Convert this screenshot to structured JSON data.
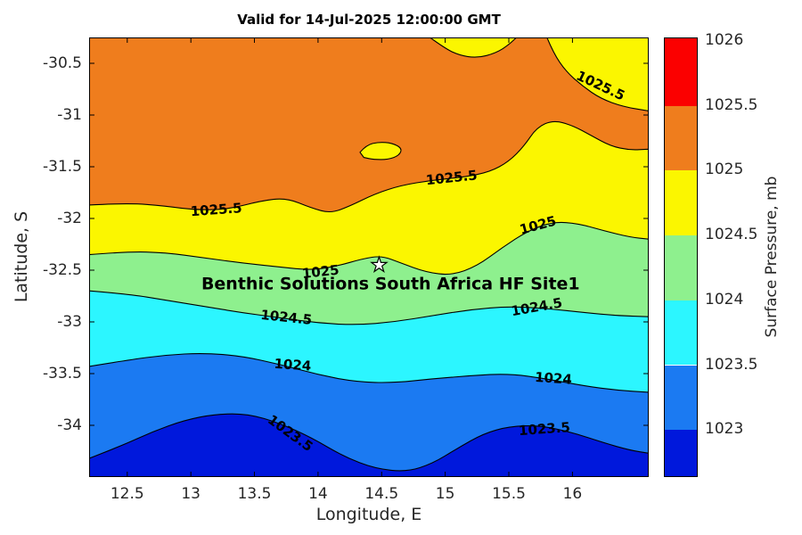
{
  "title": "Valid for 14-Jul-2025 12:00:00 GMT",
  "axes": {
    "xlabel": "Longitude, E",
    "ylabel": "Latitude, S",
    "xlim": [
      12.2,
      16.6
    ],
    "ylim": [
      -34.5,
      -30.25
    ],
    "x_ticks": [
      12.5,
      13,
      13.5,
      14,
      14.5,
      15,
      15.5,
      16
    ],
    "x_tick_labels": [
      "12.5",
      "13",
      "13.5",
      "14",
      "14.5",
      "15",
      "15.5",
      "16"
    ],
    "y_ticks": [
      -30.5,
      -31,
      -31.5,
      -32,
      -32.5,
      -33,
      -33.5,
      -34
    ],
    "y_tick_labels": [
      "-30.5",
      "-31",
      "-31.5",
      "-32",
      "-32.5",
      "-33",
      "-33.5",
      "-34"
    ]
  },
  "colorbar": {
    "label": "Surface Pressure, mb",
    "vmin": 1022.63,
    "vmax": 1026.02,
    "tick_values": [
      1026,
      1025.5,
      1025,
      1024.5,
      1024,
      1023.5,
      1023
    ],
    "tick_labels": [
      "1026",
      "1025.5",
      "1025",
      "1024.5",
      "1024",
      "1023.5",
      "1023"
    ],
    "segments": [
      {
        "from": 1025.5,
        "to": 1026.02,
        "color": "#fb0000"
      },
      {
        "from": 1025.0,
        "to": 1025.5,
        "color": "#ef7d1d"
      },
      {
        "from": 1024.5,
        "to": 1025.0,
        "color": "#fbf600"
      },
      {
        "from": 1024.0,
        "to": 1024.5,
        "color": "#8ef08e"
      },
      {
        "from": 1023.5,
        "to": 1024.0,
        "color": "#2cf6ff"
      },
      {
        "from": 1023.0,
        "to": 1023.5,
        "color": "#1b7af2"
      },
      {
        "from": 1022.63,
        "to": 1023.0,
        "color": "#0018dc"
      }
    ]
  },
  "site": {
    "label": "Benthic Solutions South Africa HF Site1",
    "star_lon": 14.48,
    "star_lat": -32.45,
    "label_lon": 14.57,
    "label_lat": -32.64
  },
  "chart_data": {
    "type": "filled_contour",
    "quantity": "Surface Pressure",
    "units": "mb",
    "title": "Valid for 14-Jul-2025 12:00:00 GMT",
    "xlabel": "Longitude, E",
    "ylabel": "Latitude, S",
    "colorbar_label": "Surface Pressure, mb",
    "levels": [
      1023,
      1023.5,
      1024,
      1024.5,
      1025,
      1025.5,
      1026
    ],
    "band_fill_colors": [
      "#0018dc",
      "#1b7af2",
      "#2cf6ff",
      "#8ef08e",
      "#fbf600",
      "#ef7d1d"
    ],
    "contour_lines": [
      {
        "level": 1023.5,
        "points": [
          [
            12.2,
            -34.32
          ],
          [
            12.45,
            -34.2
          ],
          [
            12.7,
            -34.06
          ],
          [
            12.95,
            -33.95
          ],
          [
            13.2,
            -33.89
          ],
          [
            13.45,
            -33.89
          ],
          [
            13.7,
            -33.98
          ],
          [
            13.95,
            -34.12
          ],
          [
            14.2,
            -34.3
          ],
          [
            14.45,
            -34.42
          ],
          [
            14.7,
            -34.45
          ],
          [
            14.9,
            -34.37
          ],
          [
            15.1,
            -34.22
          ],
          [
            15.3,
            -34.08
          ],
          [
            15.5,
            -34.01
          ],
          [
            15.75,
            -34.0
          ],
          [
            16.0,
            -34.07
          ],
          [
            16.25,
            -34.17
          ],
          [
            16.45,
            -34.24
          ],
          [
            16.6,
            -34.27
          ]
        ]
      },
      {
        "level": 1024,
        "points": [
          [
            12.2,
            -33.43
          ],
          [
            12.5,
            -33.37
          ],
          [
            12.8,
            -33.32
          ],
          [
            13.1,
            -33.3
          ],
          [
            13.4,
            -33.33
          ],
          [
            13.7,
            -33.41
          ],
          [
            14.0,
            -33.51
          ],
          [
            14.3,
            -33.58
          ],
          [
            14.6,
            -33.59
          ],
          [
            14.9,
            -33.55
          ],
          [
            15.2,
            -33.52
          ],
          [
            15.5,
            -33.5
          ],
          [
            15.8,
            -33.55
          ],
          [
            16.1,
            -33.62
          ],
          [
            16.35,
            -33.66
          ],
          [
            16.6,
            -33.68
          ]
        ]
      },
      {
        "level": 1024.5,
        "points": [
          [
            12.2,
            -32.7
          ],
          [
            12.5,
            -32.73
          ],
          [
            12.8,
            -32.79
          ],
          [
            13.1,
            -32.85
          ],
          [
            13.4,
            -32.91
          ],
          [
            13.7,
            -32.96
          ],
          [
            14.0,
            -33.01
          ],
          [
            14.3,
            -33.03
          ],
          [
            14.6,
            -33.0
          ],
          [
            14.9,
            -32.94
          ],
          [
            15.2,
            -32.88
          ],
          [
            15.5,
            -32.85
          ],
          [
            15.8,
            -32.87
          ],
          [
            16.1,
            -32.91
          ],
          [
            16.35,
            -32.94
          ],
          [
            16.6,
            -32.95
          ]
        ]
      },
      {
        "level": 1025,
        "points": [
          [
            12.2,
            -32.35
          ],
          [
            12.5,
            -32.32
          ],
          [
            12.8,
            -32.33
          ],
          [
            13.1,
            -32.38
          ],
          [
            13.4,
            -32.43
          ],
          [
            13.7,
            -32.47
          ],
          [
            13.95,
            -32.5
          ],
          [
            14.15,
            -32.46
          ],
          [
            14.35,
            -32.39
          ],
          [
            14.5,
            -32.36
          ],
          [
            14.65,
            -32.43
          ],
          [
            14.85,
            -32.52
          ],
          [
            15.05,
            -32.55
          ],
          [
            15.25,
            -32.46
          ],
          [
            15.45,
            -32.28
          ],
          [
            15.65,
            -32.12
          ],
          [
            15.85,
            -32.03
          ],
          [
            16.05,
            -32.05
          ],
          [
            16.25,
            -32.12
          ],
          [
            16.45,
            -32.18
          ],
          [
            16.6,
            -32.2
          ]
        ]
      },
      {
        "level": 1025.5,
        "points": [
          [
            12.2,
            -31.87
          ],
          [
            12.5,
            -31.85
          ],
          [
            12.8,
            -31.88
          ],
          [
            13.05,
            -31.92
          ],
          [
            13.3,
            -31.91
          ],
          [
            13.55,
            -31.83
          ],
          [
            13.75,
            -31.8
          ],
          [
            13.95,
            -31.9
          ],
          [
            14.1,
            -31.95
          ],
          [
            14.25,
            -31.88
          ],
          [
            14.45,
            -31.76
          ],
          [
            14.65,
            -31.68
          ],
          [
            14.9,
            -31.63
          ],
          [
            15.15,
            -31.6
          ],
          [
            15.35,
            -31.55
          ],
          [
            15.5,
            -31.45
          ],
          [
            15.62,
            -31.3
          ],
          [
            15.72,
            -31.12
          ],
          [
            15.85,
            -31.05
          ],
          [
            16.0,
            -31.1
          ],
          [
            16.15,
            -31.2
          ],
          [
            16.3,
            -31.3
          ],
          [
            16.45,
            -31.34
          ],
          [
            16.6,
            -31.33
          ]
        ]
      }
    ],
    "upper_regions": [
      {
        "level": 1025.5,
        "kind": "top-right-corner",
        "fill": "#fbf600",
        "closed": false,
        "points": [
          [
            15.8,
            -30.25
          ],
          [
            15.85,
            -30.4
          ],
          [
            15.95,
            -30.58
          ],
          [
            16.08,
            -30.72
          ],
          [
            16.22,
            -30.84
          ],
          [
            16.4,
            -30.92
          ],
          [
            16.6,
            -30.96
          ]
        ],
        "fill_extra": [
          [
            16.6,
            -30.25
          ]
        ]
      },
      {
        "level": 1025.5,
        "kind": "top-edge-notch",
        "fill": "#fbf600",
        "closed": false,
        "points": [
          [
            14.88,
            -30.25
          ],
          [
            14.98,
            -30.34
          ],
          [
            15.1,
            -30.42
          ],
          [
            15.25,
            -30.45
          ],
          [
            15.4,
            -30.4
          ],
          [
            15.5,
            -30.32
          ],
          [
            15.56,
            -30.25
          ]
        ],
        "fill_extra": []
      },
      {
        "level": 1025.5,
        "kind": "island",
        "fill": "#fbf600",
        "closed": true,
        "points": [
          [
            14.33,
            -31.36
          ],
          [
            14.38,
            -31.29
          ],
          [
            14.48,
            -31.26
          ],
          [
            14.58,
            -31.27
          ],
          [
            14.66,
            -31.32
          ],
          [
            14.64,
            -31.39
          ],
          [
            14.55,
            -31.43
          ],
          [
            14.44,
            -31.43
          ],
          [
            14.36,
            -31.41
          ]
        ],
        "fill_extra": []
      }
    ],
    "contour_labels": [
      {
        "text": "1025.5",
        "lon": 13.2,
        "lat": -31.92,
        "rot": -4
      },
      {
        "text": "1025.5",
        "lon": 15.05,
        "lat": -31.61,
        "rot": -6
      },
      {
        "text": "1025.5",
        "lon": 16.22,
        "lat": -30.72,
        "rot": 25
      },
      {
        "text": "1025",
        "lon": 14.02,
        "lat": -32.52,
        "rot": -6
      },
      {
        "text": "1025",
        "lon": 15.73,
        "lat": -32.07,
        "rot": -15
      },
      {
        "text": "1024.5",
        "lon": 13.75,
        "lat": -32.96,
        "rot": 6
      },
      {
        "text": "1024.5",
        "lon": 15.72,
        "lat": -32.86,
        "rot": -10
      },
      {
        "text": "1024",
        "lon": 13.8,
        "lat": -33.42,
        "rot": 4
      },
      {
        "text": "1024",
        "lon": 15.85,
        "lat": -33.55,
        "rot": 4
      },
      {
        "text": "1023.5",
        "lon": 13.78,
        "lat": -34.08,
        "rot": 36
      },
      {
        "text": "1023.5",
        "lon": 15.78,
        "lat": -34.04,
        "rot": -4
      }
    ]
  }
}
